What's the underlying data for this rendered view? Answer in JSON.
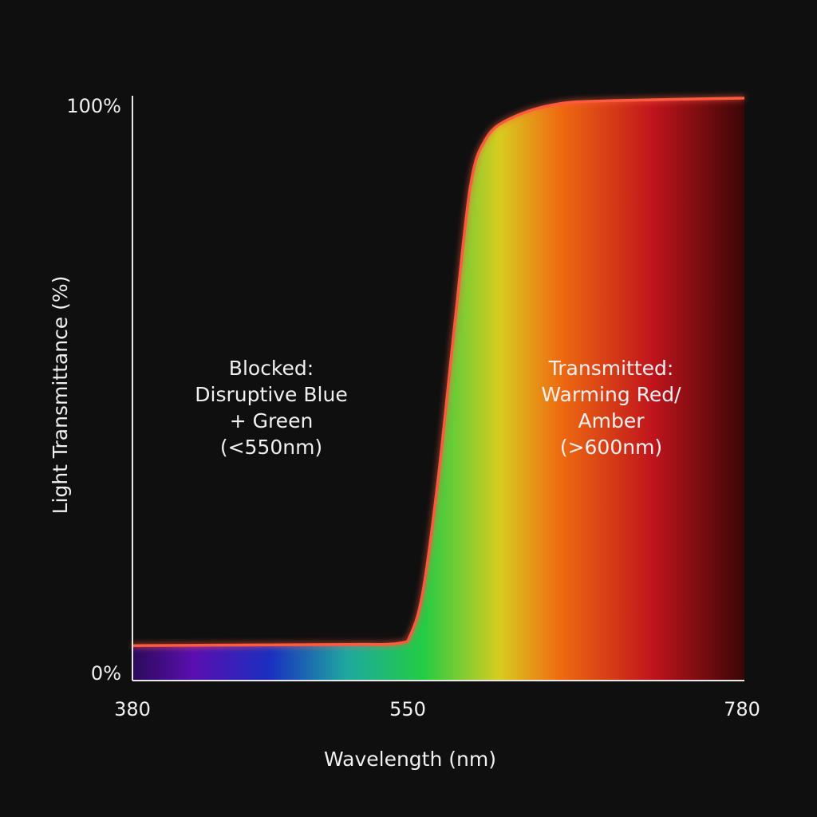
{
  "chart_data": {
    "type": "area",
    "title": "",
    "xlabel": "Wavelength (nm)",
    "ylabel": "Light Transmittance (%)",
    "xlim": [
      380,
      780
    ],
    "ylim": [
      0,
      100
    ],
    "x_ticks": [
      {
        "value": 380,
        "label": "380"
      },
      {
        "value": 550,
        "label": "550"
      },
      {
        "value": 780,
        "label": "780"
      }
    ],
    "y_ticks": [
      {
        "value": 0,
        "label": "0%"
      },
      {
        "value": 100,
        "label": "100%"
      }
    ],
    "grid": false,
    "series": [
      {
        "name": "Transmittance",
        "color": "#ff5a3c",
        "x": [
          380,
          450,
          520,
          554,
          562,
          570,
          580,
          591,
          601,
          611,
          627,
          658,
          700,
          780
        ],
        "y": [
          6,
          6.1,
          6.2,
          6.4,
          8,
          15.5,
          35,
          62,
          85,
          93,
          96.5,
          99,
          99.6,
          100
        ]
      }
    ],
    "spectrum_stops": [
      {
        "nm": 380,
        "color": "#2a0a5a"
      },
      {
        "nm": 420,
        "color": "#5a0fb0"
      },
      {
        "nm": 470,
        "color": "#1a2fc0"
      },
      {
        "nm": 520,
        "color": "#1fa8a0"
      },
      {
        "nm": 570,
        "color": "#22cc44"
      },
      {
        "nm": 620,
        "color": "#d8cc20"
      },
      {
        "nm": 660,
        "color": "#ee6a10"
      },
      {
        "nm": 720,
        "color": "#c0141c"
      },
      {
        "nm": 780,
        "color": "#3a0606"
      }
    ],
    "annotations": [
      {
        "id": "blocked",
        "lines": [
          "Blocked:",
          "Disruptive Blue",
          "+ Green",
          "(<550nm)"
        ]
      },
      {
        "id": "transmitted",
        "lines": [
          "Transmitted:",
          "Warming Red/",
          "Amber",
          "(>600nm)"
        ]
      }
    ]
  }
}
